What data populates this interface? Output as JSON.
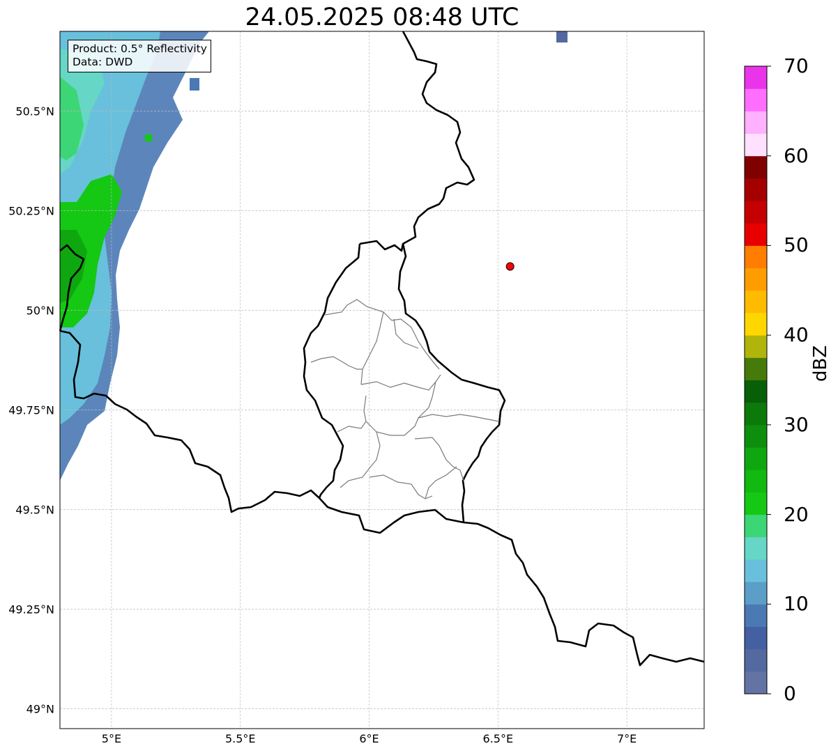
{
  "title": "24.05.2025 08:48 UTC",
  "info_box": {
    "product": "Product: 0.5° Reflectivity",
    "data_source": "Data: DWD"
  },
  "map": {
    "lon_range": [
      4.8,
      7.3
    ],
    "lat_range": [
      48.95,
      50.7
    ],
    "x_ticks": [
      {
        "value": 5.0,
        "label": "5°E"
      },
      {
        "value": 5.5,
        "label": "5.5°E"
      },
      {
        "value": 6.0,
        "label": "6°E"
      },
      {
        "value": 6.5,
        "label": "6.5°E"
      },
      {
        "value": 7.0,
        "label": "7°E"
      }
    ],
    "y_ticks": [
      {
        "value": 49.0,
        "label": "49°N"
      },
      {
        "value": 49.25,
        "label": "49.25°N"
      },
      {
        "value": 49.5,
        "label": "49.5°N"
      },
      {
        "value": 49.75,
        "label": "49.75°N"
      },
      {
        "value": 50.0,
        "label": "50°N"
      },
      {
        "value": 50.25,
        "label": "50.25°N"
      },
      {
        "value": 50.5,
        "label": "50.5°N"
      }
    ],
    "grid": true,
    "marker": {
      "lon": 6.547,
      "lat": 50.11,
      "color": "#ff0000"
    },
    "features": [
      "country-borders",
      "luxembourg-cantons",
      "radar-reflectivity-band-west"
    ]
  },
  "colorbar": {
    "unit": "dBZ",
    "min": 0,
    "max": 70,
    "ticks": [
      {
        "value": 0,
        "label": "0"
      },
      {
        "value": 10,
        "label": "10"
      },
      {
        "value": 20,
        "label": "20"
      },
      {
        "value": 30,
        "label": "30"
      },
      {
        "value": 40,
        "label": "40"
      },
      {
        "value": 50,
        "label": "50"
      },
      {
        "value": 60,
        "label": "60"
      },
      {
        "value": 70,
        "label": "70"
      }
    ],
    "colors": [
      "#6374a4",
      "#5469a0",
      "#4560a2",
      "#4a79b4",
      "#5b9ec8",
      "#68c0dc",
      "#66d6c6",
      "#3dd676",
      "#14c814",
      "#11b911",
      "#0fa70f",
      "#0d8f0d",
      "#0b7a0b",
      "#075f07",
      "#467a0a",
      "#b1b40b",
      "#ffd700",
      "#ffbb00",
      "#ff9d00",
      "#ff7d00",
      "#e80000",
      "#c40000",
      "#a40000",
      "#800000",
      "#ffe0ff",
      "#ffb0ff",
      "#ff6eff",
      "#ea34ea"
    ]
  }
}
